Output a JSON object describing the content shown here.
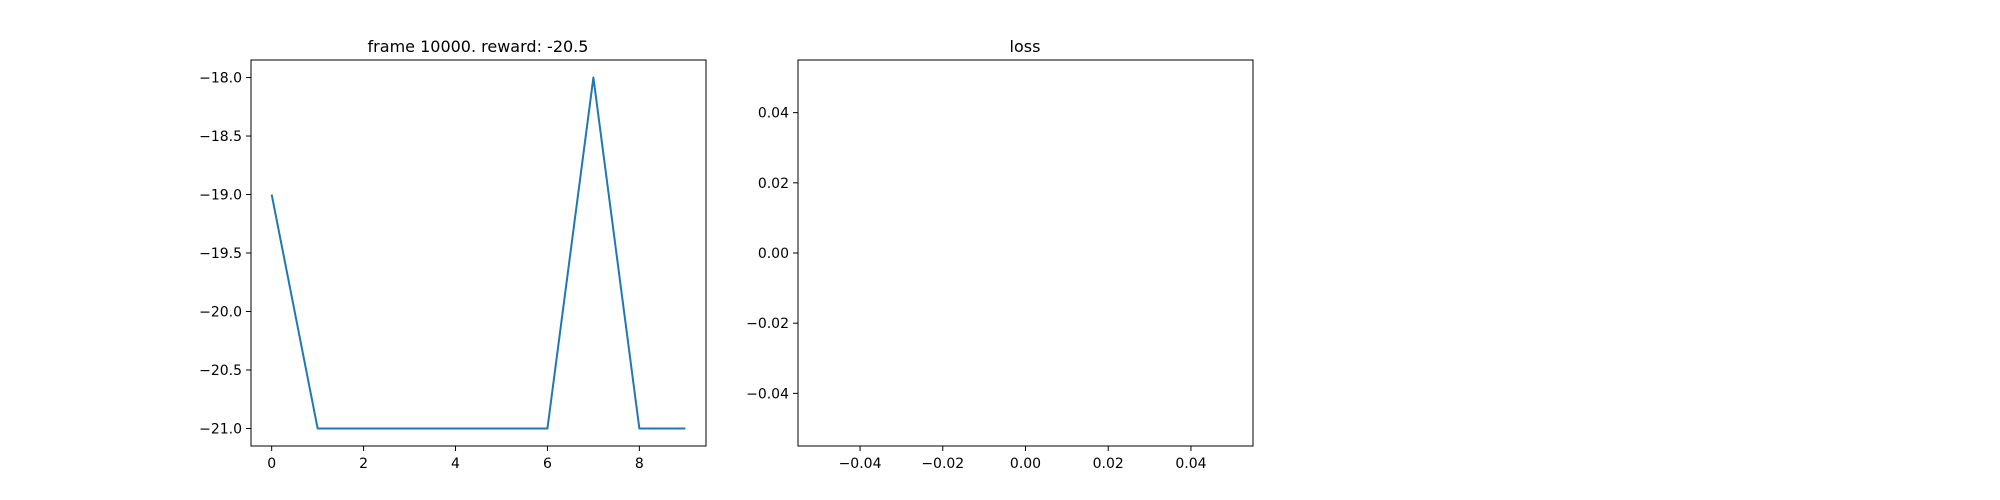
{
  "colors": {
    "line": "#1f77b4",
    "axes": "#000000",
    "background": "#ffffff"
  },
  "chart_data": [
    {
      "type": "line",
      "title": "frame 10000. reward: -20.5",
      "xlabel": "",
      "ylabel": "",
      "grid": false,
      "xlim": [
        -0.45,
        9.45
      ],
      "ylim": [
        -21.15,
        -17.85
      ],
      "xticks": [
        0,
        2,
        4,
        6,
        8
      ],
      "xtick_labels": [
        "0",
        "2",
        "4",
        "6",
        "8"
      ],
      "yticks": [
        -18.0,
        -18.5,
        -19.0,
        -19.5,
        -20.0,
        -20.5,
        -21.0
      ],
      "ytick_labels": [
        "−18.0",
        "−18.5",
        "−19.0",
        "−19.5",
        "−20.0",
        "−20.5",
        "−21.0"
      ],
      "series": [
        {
          "x": [
            0,
            1,
            2,
            3,
            4,
            5,
            6,
            7,
            8,
            9
          ],
          "y": [
            -19,
            -21,
            -21,
            -21,
            -21,
            -21,
            -21,
            -18,
            -21,
            -21
          ]
        }
      ]
    },
    {
      "type": "line",
      "title": "loss",
      "xlabel": "",
      "ylabel": "",
      "grid": false,
      "xlim": [
        -0.055,
        0.055
      ],
      "ylim": [
        -0.055,
        0.055
      ],
      "xticks": [
        -0.04,
        -0.02,
        0.0,
        0.02,
        0.04
      ],
      "xtick_labels": [
        "−0.04",
        "−0.02",
        "0.00",
        "0.02",
        "0.04"
      ],
      "yticks": [
        0.04,
        0.02,
        0.0,
        -0.02,
        -0.04
      ],
      "ytick_labels": [
        "0.04",
        "0.02",
        "0.00",
        "−0.02",
        "−0.04"
      ],
      "series": []
    }
  ]
}
